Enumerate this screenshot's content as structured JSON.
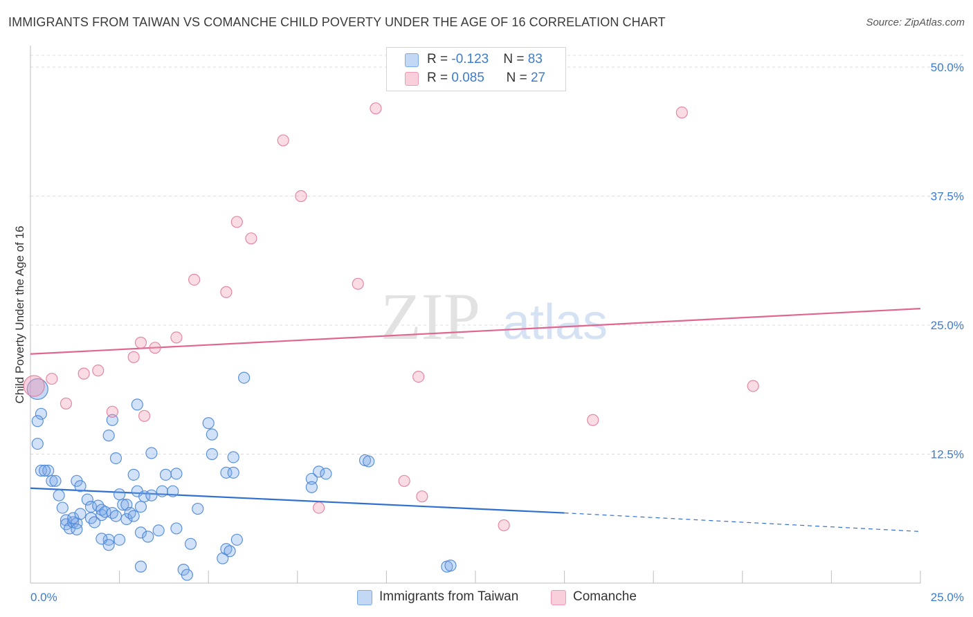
{
  "title": "IMMIGRANTS FROM TAIWAN VS COMANCHE CHILD POVERTY UNDER THE AGE OF 16 CORRELATION CHART",
  "source": "Source: ZipAtlas.com",
  "watermark": {
    "zip": "ZIP",
    "atlas": "atlas"
  },
  "legend": {
    "r_label": "R = ",
    "n_label": "N = ",
    "rows": [
      {
        "r": "-0.123",
        "n": "83",
        "color": "#7aaae8"
      },
      {
        "r": "0.085",
        "n": "27",
        "color": "#f29ab5"
      }
    ]
  },
  "bottom_legend": [
    {
      "label": "Immigrants from Taiwan",
      "color": "#7aaae8"
    },
    {
      "label": "Comanche",
      "color": "#f29ab5"
    }
  ],
  "chart_data": {
    "type": "scatter",
    "ylabel": "Child Poverty Under the Age of 16",
    "xlim": [
      0,
      25
    ],
    "ylim": [
      0,
      50
    ],
    "x_tick_labels": [
      {
        "value": 0,
        "label": "0.0%"
      },
      {
        "value": 25,
        "label": "25.0%"
      }
    ],
    "y_tick_labels": [
      {
        "value": 12.5,
        "label": "12.5%"
      },
      {
        "value": 25,
        "label": "25.0%"
      },
      {
        "value": 37.5,
        "label": "37.5%"
      },
      {
        "value": 50,
        "label": "50.0%"
      }
    ],
    "x_minor_ticks": [
      2.5,
      5,
      7.5,
      10,
      12.5,
      15,
      17.5,
      20,
      22.5,
      25
    ],
    "grid": "dashed horizontal",
    "series": [
      {
        "name": "Immigrants from Taiwan",
        "color": "#7aaae8",
        "stroke": "#4a86d6",
        "trend": {
          "x": [
            0,
            15
          ],
          "y": [
            9.2,
            6.8
          ],
          "dashed_extension_to": [
            25,
            5.0
          ],
          "color": "#2f6fd0"
        },
        "points": [
          [
            0.2,
            18.8,
            "L"
          ],
          [
            0.3,
            16.4
          ],
          [
            0.2,
            15.7
          ],
          [
            0.2,
            13.5
          ],
          [
            0.3,
            10.9
          ],
          [
            0.5,
            10.9
          ],
          [
            0.4,
            10.9
          ],
          [
            0.6,
            9.9
          ],
          [
            0.7,
            9.9
          ],
          [
            0.8,
            8.5
          ],
          [
            0.9,
            7.3
          ],
          [
            1.0,
            6.1
          ],
          [
            1.0,
            5.7
          ],
          [
            1.1,
            5.3
          ],
          [
            1.2,
            5.9
          ],
          [
            1.3,
            5.8
          ],
          [
            1.2,
            6.3
          ],
          [
            1.4,
            6.7
          ],
          [
            1.3,
            9.9
          ],
          [
            1.4,
            9.4
          ],
          [
            1.6,
            8.1
          ],
          [
            1.7,
            6.3
          ],
          [
            1.7,
            7.4
          ],
          [
            1.8,
            5.9
          ],
          [
            1.9,
            7.5
          ],
          [
            2.0,
            6.6
          ],
          [
            2.0,
            7.1
          ],
          [
            2.1,
            6.9
          ],
          [
            2.2,
            4.2
          ],
          [
            2.3,
            6.8
          ],
          [
            2.4,
            12.1
          ],
          [
            2.4,
            6.5
          ],
          [
            2.3,
            15.8
          ],
          [
            2.2,
            14.3
          ],
          [
            2.5,
            8.6
          ],
          [
            2.6,
            7.6
          ],
          [
            2.5,
            4.2
          ],
          [
            2.7,
            6.2
          ],
          [
            2.7,
            7.6
          ],
          [
            2.8,
            6.8
          ],
          [
            2.9,
            10.5
          ],
          [
            2.9,
            6.5
          ],
          [
            3.0,
            8.9
          ],
          [
            3.0,
            17.3
          ],
          [
            3.1,
            7.4
          ],
          [
            3.1,
            1.6
          ],
          [
            3.2,
            8.4
          ],
          [
            3.1,
            4.9
          ],
          [
            3.3,
            4.5
          ],
          [
            3.4,
            8.5
          ],
          [
            3.4,
            12.6
          ],
          [
            3.6,
            5.1
          ],
          [
            3.7,
            8.9
          ],
          [
            3.8,
            10.5
          ],
          [
            4.0,
            8.9
          ],
          [
            4.1,
            10.6
          ],
          [
            4.1,
            5.3
          ],
          [
            4.3,
            1.3
          ],
          [
            4.4,
            0.8
          ],
          [
            4.5,
            3.8
          ],
          [
            4.7,
            7.2
          ],
          [
            5.0,
            15.5
          ],
          [
            5.1,
            14.4
          ],
          [
            5.1,
            12.5
          ],
          [
            5.4,
            2.4
          ],
          [
            5.5,
            3.3
          ],
          [
            5.5,
            10.7
          ],
          [
            5.6,
            3.1
          ],
          [
            5.7,
            10.7
          ],
          [
            5.7,
            12.2
          ],
          [
            5.8,
            4.2
          ],
          [
            6.0,
            19.9
          ],
          [
            7.9,
            10.1
          ],
          [
            7.9,
            9.3
          ],
          [
            8.1,
            10.8
          ],
          [
            8.3,
            10.6
          ],
          [
            9.4,
            11.9
          ],
          [
            9.5,
            11.8
          ],
          [
            11.7,
            1.6
          ],
          [
            11.8,
            1.7
          ],
          [
            2.0,
            4.3
          ],
          [
            2.2,
            3.7
          ],
          [
            1.3,
            5.2
          ]
        ]
      },
      {
        "name": "Comanche",
        "color": "#f29ab5",
        "stroke": "#e07c9c",
        "trend": {
          "x": [
            0,
            25
          ],
          "y": [
            22.2,
            26.6
          ],
          "color": "#e06690"
        },
        "points": [
          [
            0.1,
            19.1,
            "L"
          ],
          [
            0.6,
            19.8
          ],
          [
            1.0,
            17.4
          ],
          [
            1.5,
            20.3
          ],
          [
            1.9,
            20.6
          ],
          [
            2.3,
            16.6
          ],
          [
            2.9,
            21.9
          ],
          [
            3.1,
            23.3
          ],
          [
            3.2,
            16.2
          ],
          [
            3.5,
            22.8
          ],
          [
            4.1,
            23.8
          ],
          [
            4.6,
            29.4
          ],
          [
            5.5,
            28.2
          ],
          [
            5.8,
            35.0
          ],
          [
            6.2,
            33.4
          ],
          [
            7.1,
            42.9
          ],
          [
            7.6,
            37.5
          ],
          [
            8.1,
            7.3
          ],
          [
            9.2,
            29.0
          ],
          [
            9.7,
            46.0
          ],
          [
            10.5,
            9.9
          ],
          [
            10.9,
            20.0
          ],
          [
            11.0,
            8.4
          ],
          [
            13.3,
            5.6
          ],
          [
            15.8,
            15.8
          ],
          [
            18.3,
            45.6
          ],
          [
            20.3,
            19.1
          ]
        ]
      }
    ]
  }
}
